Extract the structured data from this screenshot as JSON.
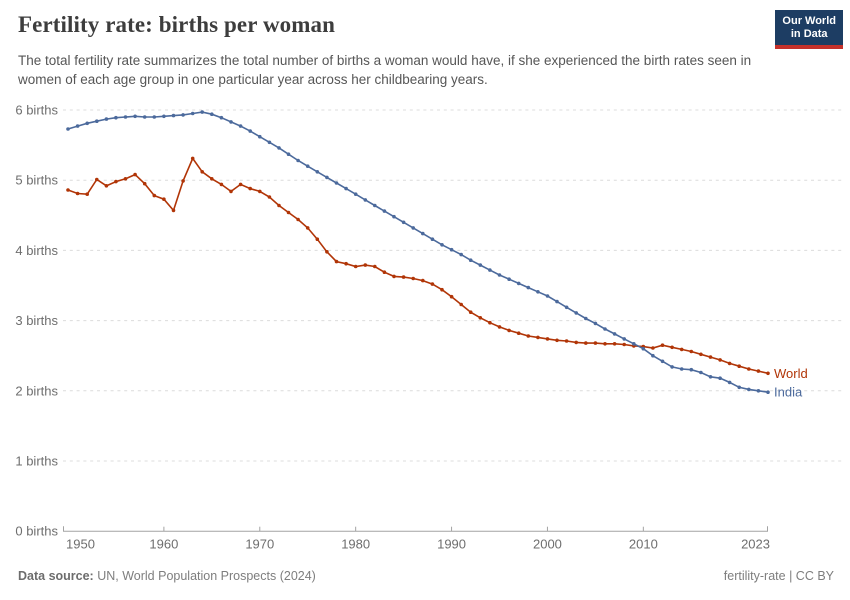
{
  "header": {
    "title": "Fertility rate: births per woman",
    "subtitle": "The total fertility rate summarizes the total number of births a woman would have, if she experienced the birth rates seen in women of each age group in one particular year across her childbearing years.",
    "logo": {
      "line1": "Our World",
      "line2": "in Data"
    }
  },
  "footer": {
    "source_label": "Data source:",
    "source_value": "UN, World Population Prospects (2024)",
    "license": "fertility-rate | CC BY"
  },
  "chart_data": {
    "type": "line",
    "title": "Fertility rate: births per woman",
    "xlabel": "",
    "ylabel": "births",
    "grid": true,
    "legend_position": "end-of-line",
    "x_range": [
      1950,
      2023
    ],
    "ylim": [
      0,
      6
    ],
    "x_label_ticks": [
      1950,
      1960,
      1970,
      1980,
      1990,
      2000,
      2010,
      2023
    ],
    "y_ticks": [
      {
        "value": 0,
        "label": "0 births"
      },
      {
        "value": 1,
        "label": "1 births"
      },
      {
        "value": 2,
        "label": "2 births"
      },
      {
        "value": 3,
        "label": "3 births"
      },
      {
        "value": 4,
        "label": "4 births"
      },
      {
        "value": 5,
        "label": "5 births"
      },
      {
        "value": 6,
        "label": "6 births"
      }
    ],
    "x": [
      1950,
      1951,
      1952,
      1953,
      1954,
      1955,
      1956,
      1957,
      1958,
      1959,
      1960,
      1961,
      1962,
      1963,
      1964,
      1965,
      1966,
      1967,
      1968,
      1969,
      1970,
      1971,
      1972,
      1973,
      1974,
      1975,
      1976,
      1977,
      1978,
      1979,
      1980,
      1981,
      1982,
      1983,
      1984,
      1985,
      1986,
      1987,
      1988,
      1989,
      1990,
      1991,
      1992,
      1993,
      1994,
      1995,
      1996,
      1997,
      1998,
      1999,
      2000,
      2001,
      2002,
      2003,
      2004,
      2005,
      2006,
      2007,
      2008,
      2009,
      2010,
      2011,
      2012,
      2013,
      2014,
      2015,
      2016,
      2017,
      2018,
      2019,
      2020,
      2021,
      2022,
      2023
    ],
    "series": [
      {
        "name": "World",
        "color": "#b13507",
        "values": [
          4.86,
          4.81,
          4.8,
          5.01,
          4.92,
          4.98,
          5.02,
          5.08,
          4.95,
          4.78,
          4.73,
          4.57,
          4.99,
          5.31,
          5.12,
          5.02,
          4.94,
          4.84,
          4.94,
          4.88,
          4.84,
          4.76,
          4.64,
          4.54,
          4.44,
          4.32,
          4.16,
          3.98,
          3.84,
          3.81,
          3.77,
          3.79,
          3.77,
          3.69,
          3.63,
          3.62,
          3.6,
          3.57,
          3.52,
          3.44,
          3.34,
          3.23,
          3.12,
          3.04,
          2.97,
          2.91,
          2.86,
          2.82,
          2.78,
          2.76,
          2.74,
          2.72,
          2.71,
          2.69,
          2.68,
          2.68,
          2.67,
          2.67,
          2.66,
          2.64,
          2.63,
          2.61,
          2.65,
          2.62,
          2.59,
          2.56,
          2.52,
          2.48,
          2.44,
          2.39,
          2.35,
          2.31,
          2.28,
          2.25
        ]
      },
      {
        "name": "India",
        "color": "#4c6a9c",
        "values": [
          5.73,
          5.77,
          5.81,
          5.84,
          5.87,
          5.89,
          5.9,
          5.91,
          5.9,
          5.9,
          5.91,
          5.92,
          5.93,
          5.95,
          5.97,
          5.94,
          5.89,
          5.83,
          5.77,
          5.7,
          5.62,
          5.54,
          5.46,
          5.37,
          5.28,
          5.2,
          5.12,
          5.04,
          4.96,
          4.88,
          4.8,
          4.72,
          4.64,
          4.56,
          4.48,
          4.4,
          4.32,
          4.24,
          4.16,
          4.08,
          4.01,
          3.94,
          3.86,
          3.79,
          3.72,
          3.65,
          3.59,
          3.53,
          3.47,
          3.41,
          3.35,
          3.27,
          3.19,
          3.11,
          3.03,
          2.96,
          2.88,
          2.81,
          2.74,
          2.67,
          2.6,
          2.5,
          2.42,
          2.34,
          2.31,
          2.3,
          2.26,
          2.2,
          2.18,
          2.12,
          2.05,
          2.02,
          2.0,
          1.98
        ]
      }
    ]
  }
}
